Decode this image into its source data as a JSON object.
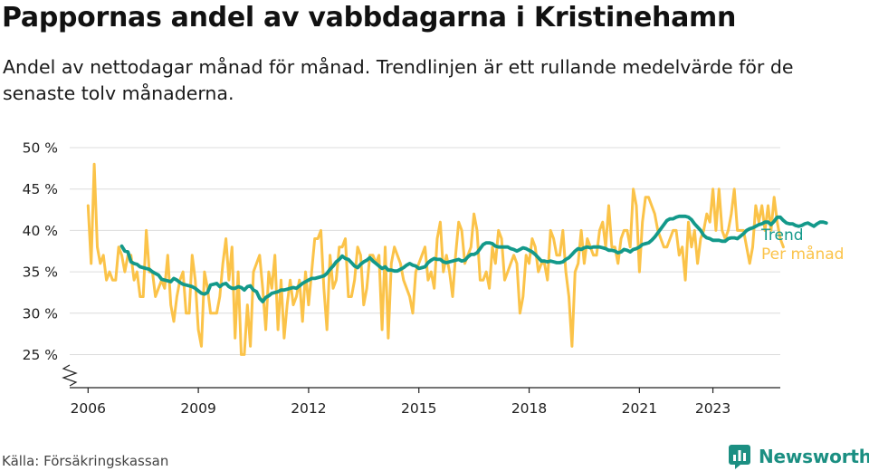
{
  "title": "Pappornas andel av vabbdagarna i Kristinehamn",
  "subtitle": "Andel av nettodagar månad för månad. Trendlinjen är ett rullande medelvärde för de senaste tolv månaderna.",
  "source": "Källa: Försäkringskassan",
  "brand": "Newsworthy",
  "colors": {
    "trend": "#13998a",
    "monthly": "#fbc349",
    "grid": "#dcdcdc",
    "axis": "#222222",
    "brand": "#1b8f82"
  },
  "chart_data": {
    "type": "line",
    "ylim": [
      21,
      50
    ],
    "y_ticks": [
      {
        "value": 25,
        "label": "25 %"
      },
      {
        "value": 30,
        "label": "30 %"
      },
      {
        "value": 35,
        "label": "35 %"
      },
      {
        "value": 40,
        "label": "40 %"
      },
      {
        "value": 45,
        "label": "45 %"
      },
      {
        "value": 50,
        "label": "50 %"
      }
    ],
    "xlim": [
      "2005-07",
      "2024-11"
    ],
    "x_ticks": [
      {
        "value": "2006-01",
        "label": "2006"
      },
      {
        "value": "2009-01",
        "label": "2009"
      },
      {
        "value": "2012-01",
        "label": "2012"
      },
      {
        "value": "2015-01",
        "label": "2015"
      },
      {
        "value": "2018-01",
        "label": "2018"
      },
      {
        "value": "2021-01",
        "label": "2021"
      },
      {
        "value": "2023-01",
        "label": "2023"
      }
    ],
    "axis_break": true,
    "grid": true,
    "series": [
      {
        "name": "Per månad",
        "start": "2006-01",
        "values": [
          43,
          36,
          48,
          38,
          36,
          37,
          34,
          35,
          34,
          34,
          38,
          37,
          35,
          37,
          37,
          34,
          35,
          32,
          32,
          40,
          35,
          35,
          32,
          33,
          34,
          33,
          37,
          31,
          29,
          32,
          34,
          35,
          30,
          30,
          37,
          34,
          28,
          26,
          35,
          33,
          30,
          30,
          30,
          32,
          36,
          39,
          34,
          38,
          27,
          35,
          25,
          25,
          31,
          26,
          35,
          36,
          37,
          33,
          28,
          35,
          33,
          37,
          28,
          34,
          27,
          31,
          34,
          31,
          32,
          34,
          29,
          35,
          31,
          35,
          39,
          39,
          40,
          33,
          28,
          37,
          33,
          34,
          38,
          38,
          39,
          32,
          32,
          34,
          38,
          37,
          31,
          33,
          37,
          37,
          36,
          37,
          28,
          38,
          27,
          36,
          38,
          37,
          36,
          34,
          33,
          32,
          30,
          35,
          36,
          37,
          38,
          34,
          35,
          33,
          39,
          41,
          35,
          37,
          35,
          32,
          37,
          41,
          40,
          36,
          37,
          38,
          42,
          40,
          34,
          34,
          35,
          33,
          38,
          36,
          40,
          39,
          34,
          35,
          36,
          37,
          36,
          30,
          32,
          37,
          36,
          39,
          38,
          35,
          36,
          36,
          34,
          40,
          39,
          37,
          37,
          40,
          35,
          32,
          26,
          35,
          36,
          40,
          36,
          39,
          38,
          37,
          37,
          40,
          41,
          38,
          43,
          38,
          38,
          36,
          39,
          40,
          40,
          38,
          45,
          43,
          35,
          41,
          44,
          44,
          43,
          42,
          40,
          39,
          38,
          38,
          39,
          40,
          40,
          37,
          38,
          34,
          41,
          38,
          40,
          36,
          39,
          40,
          42,
          41,
          45,
          40,
          45,
          40,
          39,
          40,
          42,
          45,
          40,
          40,
          40,
          38,
          36,
          38,
          43,
          41,
          43,
          40,
          43,
          40,
          44,
          41,
          39,
          38
        ]
      },
      {
        "name": "Trend",
        "start": "2006-12",
        "values": [
          38.1,
          37.5,
          37.4,
          36.2,
          36,
          35.9,
          35.6,
          35.5,
          35.4,
          35.3,
          35,
          34.8,
          34.6,
          34.1,
          34,
          33.9,
          33.8,
          34.2,
          34,
          33.7,
          33.5,
          33.4,
          33.3,
          33.2,
          33,
          32.7,
          32.4,
          32.3,
          32.5,
          33.4,
          33.5,
          33.6,
          33.2,
          33.5,
          33.6,
          33.2,
          33,
          33,
          33.2,
          33.1,
          32.8,
          33.2,
          33.3,
          32.8,
          32.6,
          31.8,
          31.4,
          31.9,
          32.1,
          32.4,
          32.5,
          32.6,
          32.8,
          32.8,
          32.9,
          33,
          33.1,
          33,
          33.3,
          33.6,
          33.8,
          34,
          34.2,
          34.2,
          34.3,
          34.4,
          34.5,
          34.8,
          35.3,
          35.7,
          36.2,
          36.5,
          36.9,
          36.6,
          36.5,
          36.1,
          35.7,
          35.5,
          35.9,
          36.2,
          36.4,
          36.7,
          36.3,
          36,
          35.7,
          35.4,
          35.6,
          35.2,
          35.2,
          35.1,
          35.1,
          35.3,
          35.5,
          35.8,
          36,
          35.8,
          35.7,
          35.4,
          35.5,
          35.6,
          36.1,
          36.4,
          36.6,
          36.5,
          36.5,
          36.2,
          36.1,
          36.2,
          36.3,
          36.4,
          36.5,
          36.3,
          36.4,
          36.8,
          37.1,
          37.1,
          37.3,
          37.8,
          38.3,
          38.5,
          38.5,
          38.4,
          38.1,
          38,
          38,
          38,
          38,
          37.8,
          37.7,
          37.5,
          37.7,
          37.9,
          37.8,
          37.6,
          37.4,
          37.1,
          36.7,
          36.3,
          36.3,
          36.2,
          36.3,
          36.2,
          36.1,
          36.1,
          36.2,
          36.5,
          36.7,
          37.1,
          37.5,
          37.8,
          37.7,
          37.9,
          38,
          37.9,
          38,
          38,
          38,
          37.9,
          37.8,
          37.6,
          37.6,
          37.5,
          37.3,
          37.4,
          37.7,
          37.6,
          37.4,
          37.7,
          37.8,
          38,
          38.3,
          38.4,
          38.5,
          38.8,
          39.2,
          39.7,
          40.2,
          40.7,
          41.2,
          41.4,
          41.4,
          41.6,
          41.7,
          41.7,
          41.7,
          41.6,
          41.3,
          40.8,
          40.4,
          40,
          39.4,
          39.1,
          39,
          38.8,
          38.8,
          38.8,
          38.7,
          38.7,
          39,
          39.1,
          39.1,
          39,
          39.3,
          39.6,
          40,
          40.2,
          40.3,
          40.5,
          40.7,
          40.8,
          41,
          41,
          40.7,
          41.1,
          41.6,
          41.6,
          41.2,
          40.9,
          40.8,
          40.8,
          40.6,
          40.5,
          40.6,
          40.8,
          40.9,
          40.7,
          40.5,
          40.8,
          41,
          41,
          40.9
        ]
      }
    ],
    "end_labels": [
      "Trend",
      "Per månad"
    ]
  }
}
